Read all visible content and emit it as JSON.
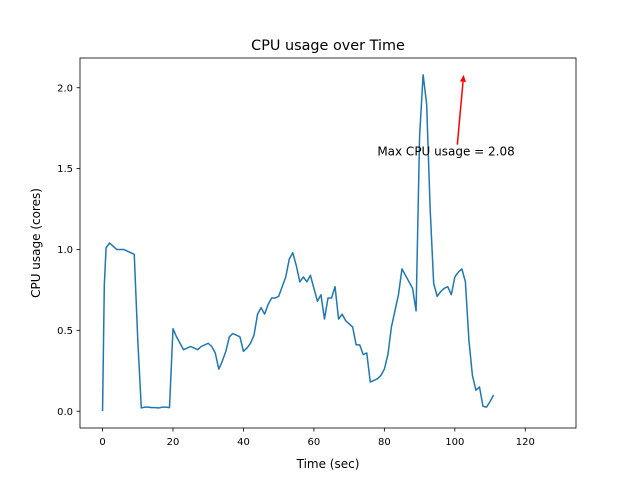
{
  "chart_data": {
    "type": "line",
    "title": "CPU usage over Time",
    "xlabel": "Time (sec)",
    "ylabel": "CPU usage (cores)",
    "xlim": [
      -6.4,
      134.4
    ],
    "ylim": [
      -0.104,
      2.184
    ],
    "xticks": [
      0,
      20,
      40,
      60,
      80,
      100,
      120
    ],
    "yticks": [
      0.0,
      0.5,
      1.0,
      1.5,
      2.0
    ],
    "xtick_labels": [
      "0",
      "20",
      "40",
      "60",
      "80",
      "100",
      "120"
    ],
    "ytick_labels": [
      "0.0",
      "0.5",
      "1.0",
      "1.5",
      "2.0"
    ],
    "grid": false,
    "series": [
      {
        "color": "#1f77b4",
        "points": [
          [
            0,
            0.0
          ],
          [
            0.5,
            0.78
          ],
          [
            1,
            1.01
          ],
          [
            2,
            1.04
          ],
          [
            3,
            1.02
          ],
          [
            4,
            1.0
          ],
          [
            5,
            1.0
          ],
          [
            6,
            1.0
          ],
          [
            7,
            0.99
          ],
          [
            8,
            0.98
          ],
          [
            9,
            0.97
          ],
          [
            10,
            0.44
          ],
          [
            11,
            0.02
          ],
          [
            12,
            0.025
          ],
          [
            13,
            0.025
          ],
          [
            14,
            0.022
          ],
          [
            15,
            0.022
          ],
          [
            16,
            0.02
          ],
          [
            17,
            0.025
          ],
          [
            18,
            0.025
          ],
          [
            19,
            0.022
          ],
          [
            20,
            0.51
          ],
          [
            21,
            0.46
          ],
          [
            22,
            0.42
          ],
          [
            23,
            0.38
          ],
          [
            24,
            0.39
          ],
          [
            25,
            0.4
          ],
          [
            26,
            0.39
          ],
          [
            27,
            0.38
          ],
          [
            28,
            0.4
          ],
          [
            29,
            0.41
          ],
          [
            30,
            0.42
          ],
          [
            31,
            0.4
          ],
          [
            32,
            0.36
          ],
          [
            33,
            0.26
          ],
          [
            34,
            0.31
          ],
          [
            35,
            0.37
          ],
          [
            36,
            0.46
          ],
          [
            37,
            0.48
          ],
          [
            38,
            0.47
          ],
          [
            39,
            0.46
          ],
          [
            40,
            0.37
          ],
          [
            41,
            0.39
          ],
          [
            42,
            0.42
          ],
          [
            43,
            0.47
          ],
          [
            44,
            0.6
          ],
          [
            45,
            0.64
          ],
          [
            46,
            0.6
          ],
          [
            47,
            0.66
          ],
          [
            48,
            0.7
          ],
          [
            49,
            0.7
          ],
          [
            50,
            0.71
          ],
          [
            51,
            0.77
          ],
          [
            52,
            0.83
          ],
          [
            53,
            0.94
          ],
          [
            54,
            0.98
          ],
          [
            55,
            0.9
          ],
          [
            56,
            0.8
          ],
          [
            57,
            0.83
          ],
          [
            58,
            0.8
          ],
          [
            59,
            0.84
          ],
          [
            60,
            0.76
          ],
          [
            61,
            0.68
          ],
          [
            62,
            0.72
          ],
          [
            63,
            0.57
          ],
          [
            64,
            0.7
          ],
          [
            65,
            0.7
          ],
          [
            66,
            0.77
          ],
          [
            67,
            0.57
          ],
          [
            68,
            0.6
          ],
          [
            69,
            0.56
          ],
          [
            70,
            0.54
          ],
          [
            71,
            0.52
          ],
          [
            72,
            0.41
          ],
          [
            73,
            0.41
          ],
          [
            74,
            0.35
          ],
          [
            75,
            0.36
          ],
          [
            76,
            0.18
          ],
          [
            77,
            0.19
          ],
          [
            78,
            0.2
          ],
          [
            79,
            0.22
          ],
          [
            80,
            0.26
          ],
          [
            81,
            0.35
          ],
          [
            82,
            0.52
          ],
          [
            83,
            0.62
          ],
          [
            84,
            0.72
          ],
          [
            85,
            0.88
          ],
          [
            86,
            0.84
          ],
          [
            87,
            0.8
          ],
          [
            88,
            0.76
          ],
          [
            89,
            0.62
          ],
          [
            90,
            1.7
          ],
          [
            91,
            2.08
          ],
          [
            92,
            1.9
          ],
          [
            93,
            1.25
          ],
          [
            94,
            0.79
          ],
          [
            95,
            0.71
          ],
          [
            96,
            0.74
          ],
          [
            97,
            0.76
          ],
          [
            98,
            0.77
          ],
          [
            99,
            0.72
          ],
          [
            100,
            0.83
          ],
          [
            101,
            0.86
          ],
          [
            102,
            0.88
          ],
          [
            103,
            0.8
          ],
          [
            104,
            0.44
          ],
          [
            105,
            0.22
          ],
          [
            106,
            0.13
          ],
          [
            107,
            0.15
          ],
          [
            108,
            0.03
          ],
          [
            109,
            0.025
          ],
          [
            110,
            0.06
          ],
          [
            111,
            0.1
          ]
        ]
      }
    ],
    "annotation": {
      "text": "Max CPU usage = 2.08",
      "color": "#ff0000",
      "xy": [
        102.5,
        2.08
      ],
      "xytext": [
        78,
        1.58
      ]
    }
  }
}
